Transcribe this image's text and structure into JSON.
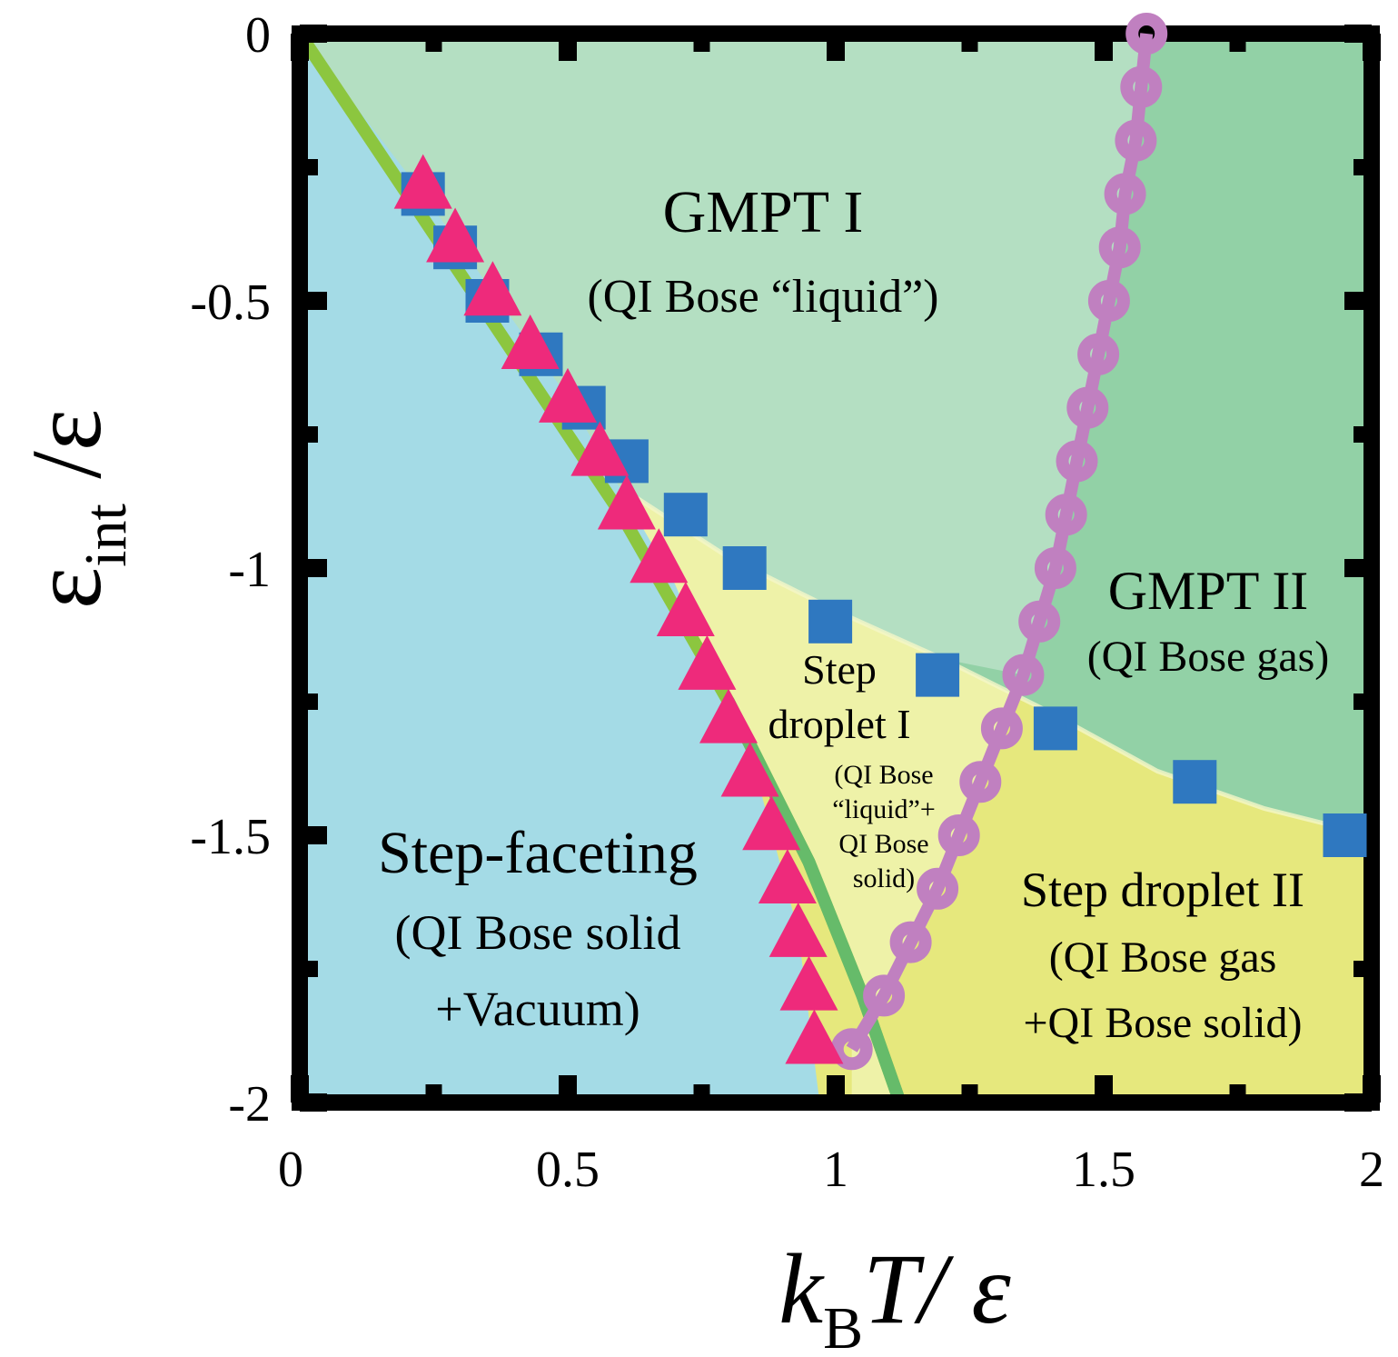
{
  "chart_data": {
    "type": "scatter",
    "xlim": [
      0,
      2
    ],
    "ylim": [
      -2,
      0
    ],
    "x_ticks": [
      "0",
      "0.5",
      "1",
      "1.5",
      "2"
    ],
    "y_ticks": [
      "0",
      "-0.5",
      "-1",
      "-1.5",
      "-2"
    ],
    "xlabel": {
      "base": "k",
      "sub": "B",
      "rest": "T/ ε"
    },
    "ylabel": {
      "base": "ε",
      "sub": "int",
      "rest": " /ε"
    },
    "colors": {
      "step_faceting": "#a4dbe6",
      "gmpt1": "#b4dfc2",
      "gmpt2": "#92d1a6",
      "droplet1": "#eef2a8",
      "droplet2": "#e6e87d",
      "green_line": "#8cc63f",
      "green_line_lower": "#66bb6a",
      "squares": "#2f78c0",
      "triangles": "#ee2a7b",
      "circles": "#c080c0",
      "frame": "#000000"
    },
    "regions": [
      {
        "name": "region-label-gmpt1",
        "lines": [
          "GMPT I",
          "(QI Bose “liquid”)"
        ]
      },
      {
        "name": "region-label-gmpt2",
        "lines": [
          "GMPT II",
          "(QI Bose gas)"
        ]
      },
      {
        "name": "region-label-droplet1",
        "lines": [
          "Step",
          "droplet I"
        ]
      },
      {
        "name": "region-label-droplet1-detail",
        "lines": [
          "(QI Bose",
          "“liquid”+",
          "QI Bose",
          "solid)"
        ]
      },
      {
        "name": "region-label-droplet2",
        "lines": [
          "Step droplet II",
          "(QI Bose gas",
          "+QI Bose solid)"
        ]
      },
      {
        "name": "region-label-faceting",
        "lines": [
          "Step-faceting",
          "(QI Bose solid",
          "+Vacuum)"
        ]
      }
    ],
    "series": [
      {
        "name": "squares",
        "marker": "square",
        "points": [
          [
            0.23,
            -0.3
          ],
          [
            0.29,
            -0.4
          ],
          [
            0.35,
            -0.5
          ],
          [
            0.45,
            -0.6
          ],
          [
            0.53,
            -0.7
          ],
          [
            0.61,
            -0.8
          ],
          [
            0.72,
            -0.9
          ],
          [
            0.83,
            -1.0
          ],
          [
            0.99,
            -1.1
          ],
          [
            1.19,
            -1.2
          ],
          [
            1.41,
            -1.3
          ],
          [
            1.67,
            -1.4
          ],
          [
            1.95,
            -1.5
          ]
        ]
      },
      {
        "name": "triangles",
        "marker": "triangle",
        "points": [
          [
            0.23,
            -0.28
          ],
          [
            0.29,
            -0.38
          ],
          [
            0.36,
            -0.48
          ],
          [
            0.43,
            -0.58
          ],
          [
            0.5,
            -0.68
          ],
          [
            0.56,
            -0.78
          ],
          [
            0.61,
            -0.88
          ],
          [
            0.67,
            -0.98
          ],
          [
            0.72,
            -1.08
          ],
          [
            0.76,
            -1.18
          ],
          [
            0.8,
            -1.28
          ],
          [
            0.84,
            -1.38
          ],
          [
            0.88,
            -1.48
          ],
          [
            0.91,
            -1.58
          ],
          [
            0.93,
            -1.68
          ],
          [
            0.95,
            -1.78
          ],
          [
            0.96,
            -1.88
          ]
        ]
      },
      {
        "name": "circles",
        "marker": "circle",
        "points": [
          [
            1.58,
            0.0
          ],
          [
            1.57,
            -0.1
          ],
          [
            1.56,
            -0.2
          ],
          [
            1.54,
            -0.3
          ],
          [
            1.53,
            -0.4
          ],
          [
            1.51,
            -0.5
          ],
          [
            1.49,
            -0.6
          ],
          [
            1.47,
            -0.7
          ],
          [
            1.45,
            -0.8
          ],
          [
            1.43,
            -0.9
          ],
          [
            1.41,
            -1.0
          ],
          [
            1.38,
            -1.1
          ],
          [
            1.35,
            -1.2
          ],
          [
            1.31,
            -1.3
          ],
          [
            1.27,
            -1.4
          ],
          [
            1.23,
            -1.5
          ],
          [
            1.19,
            -1.6
          ],
          [
            1.14,
            -1.7
          ],
          [
            1.09,
            -1.8
          ],
          [
            1.03,
            -1.9
          ]
        ]
      },
      {
        "name": "green-boundary",
        "marker": "line",
        "points": [
          [
            0.0,
            0.0
          ],
          [
            0.2,
            -0.3
          ],
          [
            0.4,
            -0.6
          ],
          [
            0.6,
            -0.9
          ],
          [
            0.8,
            -1.25
          ],
          [
            0.95,
            -1.55
          ],
          [
            1.05,
            -1.8
          ],
          [
            1.12,
            -2.0
          ]
        ]
      },
      {
        "name": "gmpt1-lower-boundary",
        "marker": "boundary",
        "points": [
          [
            0.6,
            -0.85
          ],
          [
            0.8,
            -0.98
          ],
          [
            1.0,
            -1.08
          ],
          [
            1.2,
            -1.17
          ],
          [
            1.4,
            -1.27
          ],
          [
            1.6,
            -1.38
          ],
          [
            1.8,
            -1.45
          ],
          [
            2.0,
            -1.5
          ]
        ]
      },
      {
        "name": "faceting-right-boundary",
        "marker": "boundary",
        "points": [
          [
            0.23,
            -0.3
          ],
          [
            0.5,
            -0.68
          ],
          [
            0.7,
            -1.03
          ],
          [
            0.85,
            -1.38
          ],
          [
            0.93,
            -1.68
          ],
          [
            0.97,
            -2.0
          ]
        ]
      }
    ]
  }
}
